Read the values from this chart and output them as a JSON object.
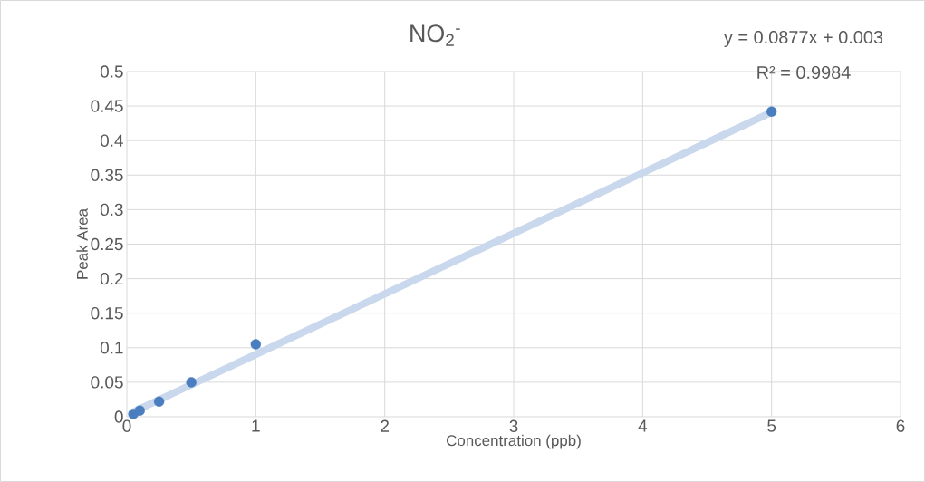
{
  "chart_data": {
    "type": "scatter",
    "title": "NO$_{2}$$^{-}$",
    "xlabel": "Concentration (ppb)",
    "ylabel": "Peak Area",
    "annotations": [
      "y = 0.0877x + 0.003",
      "R² = 0.9984"
    ],
    "series": [
      {
        "type": "line",
        "marker": "none",
        "color": "#c9d8ec",
        "x": [
          0.05,
          5
        ],
        "values": [
          0.007,
          0.441
        ]
      },
      {
        "marker": "circle",
        "color": "#4a7ebf",
        "x": [
          0.05,
          0.1,
          0.25,
          0.5,
          1,
          5
        ],
        "values": [
          0.004,
          0.009,
          0.022,
          0.05,
          0.105,
          0.442
        ]
      }
    ],
    "grid": true,
    "xlim": [
      0,
      6
    ],
    "xticks": [
      0,
      1,
      2,
      3,
      4,
      5,
      6
    ],
    "ylim": [
      0,
      0.5
    ],
    "yticks": [
      0,
      0.05,
      0.1,
      0.15,
      0.2,
      0.25,
      0.3,
      0.35,
      0.4,
      0.45,
      0.5
    ]
  }
}
